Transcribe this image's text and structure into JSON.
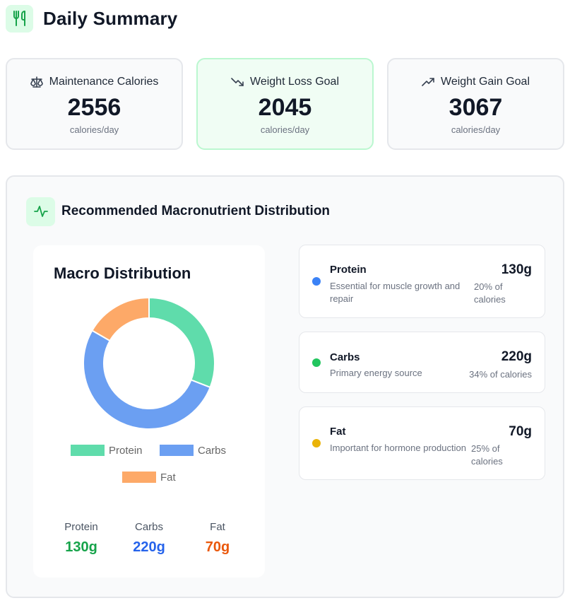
{
  "header": {
    "title": "Daily Summary",
    "icon": "utensils-icon"
  },
  "cards": [
    {
      "label": "Maintenance Calories",
      "value": "2556",
      "unit": "calories/day",
      "icon": "scale-icon"
    },
    {
      "label": "Weight Loss Goal",
      "value": "2045",
      "unit": "calories/day",
      "icon": "trending-down-icon"
    },
    {
      "label": "Weight Gain Goal",
      "value": "3067",
      "unit": "calories/day",
      "icon": "trending-up-icon"
    }
  ],
  "panel": {
    "title": "Recommended Macronutrient Distribution",
    "icon": "activity-icon"
  },
  "chart_data": {
    "type": "pie",
    "title": "Macro Distribution",
    "categories": [
      "Protein",
      "Carbs",
      "Fat"
    ],
    "values": [
      130,
      220,
      70
    ],
    "colors": [
      "#5fdcab",
      "#6b9ff2",
      "#fda968"
    ],
    "legend": "bottom"
  },
  "summary": [
    {
      "label": "Protein",
      "value": "130g",
      "color": "#16a34a"
    },
    {
      "label": "Carbs",
      "value": "220g",
      "color": "#2563eb"
    },
    {
      "label": "Fat",
      "value": "70g",
      "color": "#ea580c"
    }
  ],
  "macros": [
    {
      "name": "Protein",
      "desc": "Essential for muscle growth and repair",
      "grams": "130g",
      "pct": "20% of calories",
      "dot": "#3b82f6"
    },
    {
      "name": "Carbs",
      "desc": "Primary energy source",
      "grams": "220g",
      "pct": "34% of calories",
      "dot": "#22c55e"
    },
    {
      "name": "Fat",
      "desc": "Important for hormone production",
      "grams": "70g",
      "pct": "25% of calories",
      "dot": "#eab308"
    }
  ]
}
